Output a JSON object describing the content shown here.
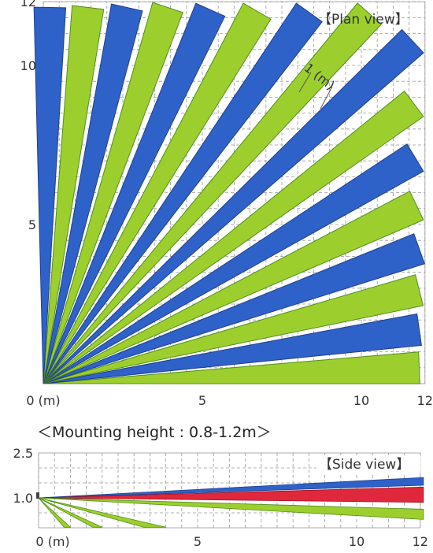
{
  "plan_view": {
    "label": "【Plan view】",
    "x_ticks": [
      {
        "v": 0,
        "t": "0 (m)"
      },
      {
        "v": 5,
        "t": "5"
      },
      {
        "v": 10,
        "t": "10"
      },
      {
        "v": 12,
        "t": "12"
      }
    ],
    "y_ticks": [
      {
        "v": 5,
        "t": "5"
      },
      {
        "v": 10,
        "t": "10"
      },
      {
        "v": 12,
        "t": "12"
      }
    ],
    "range_m": 12,
    "beam_width_label": "1 (m)",
    "colors": {
      "blue": "#2f62c8",
      "green": "#9ccf2e"
    },
    "beam_colors": [
      "green",
      "blue",
      "green",
      "blue",
      "green",
      "blue",
      "green",
      "blue",
      "green",
      "blue",
      "green",
      "blue",
      "green",
      "blue",
      "green",
      "blue"
    ]
  },
  "mounting_caption": "＜Mounting height : 0.8-1.2m＞",
  "side_view": {
    "label": "【Side view】",
    "x_ticks": [
      {
        "v": 0,
        "t": "0 (m)"
      },
      {
        "v": 5,
        "t": "5"
      },
      {
        "v": 10,
        "t": "10"
      },
      {
        "v": 12,
        "t": "12"
      }
    ],
    "y_ticks": [
      {
        "v": 2.5,
        "t": "2.5"
      },
      {
        "v": 1.0,
        "t": "1.0"
      }
    ],
    "mount_height_m": 1.0,
    "colors": {
      "blue": "#2f62c8",
      "red": "#e0283c",
      "green": "#9ccf2e"
    }
  }
}
